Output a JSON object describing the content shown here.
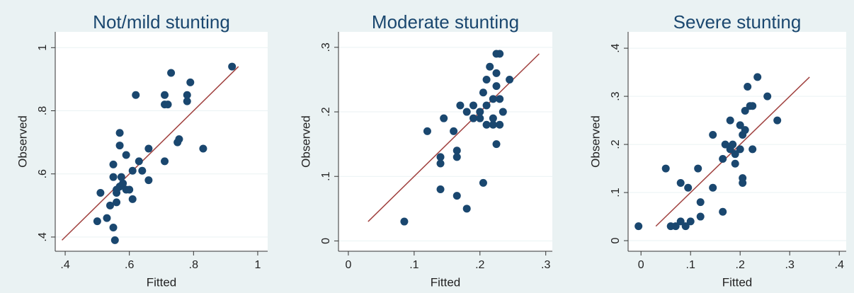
{
  "chart_data": [
    {
      "type": "scatter",
      "title": "Not/mild stunting",
      "x_label": "Fitted",
      "y_label": "Observed",
      "color": "#1a476f",
      "grid": true,
      "xlim": [
        0.369,
        1.031
      ],
      "ylim": [
        0.355,
        1.05
      ],
      "xticks": [
        {
          "value": 0.4,
          "label": ".4"
        },
        {
          "value": 0.6,
          "label": ".6"
        },
        {
          "value": 0.8,
          "label": ".8"
        },
        1
      ],
      "yticks": [
        {
          "value": 0.4,
          "label": ".4"
        },
        {
          "value": 0.6,
          "label": ".6"
        },
        {
          "value": 0.8,
          "label": ".8"
        },
        1
      ],
      "x": [
        0.5,
        0.51,
        0.53,
        0.54,
        0.55,
        0.555,
        0.55,
        0.55,
        0.56,
        0.56,
        0.56,
        0.57,
        0.57,
        0.57,
        0.575,
        0.58,
        0.59,
        0.59,
        0.6,
        0.61,
        0.61,
        0.62,
        0.63,
        0.64,
        0.66,
        0.66,
        0.71,
        0.71,
        0.71,
        0.72,
        0.73,
        0.75,
        0.755,
        0.78,
        0.78,
        0.79,
        0.83,
        0.92
      ],
      "y": [
        0.45,
        0.54,
        0.46,
        0.5,
        0.43,
        0.39,
        0.59,
        0.63,
        0.51,
        0.54,
        0.55,
        0.56,
        0.69,
        0.73,
        0.59,
        0.57,
        0.66,
        0.55,
        0.55,
        0.52,
        0.61,
        0.85,
        0.64,
        0.61,
        0.68,
        0.58,
        0.85,
        0.82,
        0.64,
        0.82,
        0.92,
        0.7,
        0.71,
        0.83,
        0.85,
        0.89,
        0.68,
        0.94
      ],
      "fit_line": {
        "color": "#a0403e",
        "x": [
          0.39,
          0.94
        ],
        "y": [
          0.39,
          0.94
        ]
      }
    },
    {
      "type": "scatter",
      "title": "Moderate stunting",
      "x_label": "Fitted",
      "y_label": "Observed",
      "color": "#1a476f",
      "grid": true,
      "xlim": [
        -0.015,
        0.31
      ],
      "ylim": [
        -0.016,
        0.324
      ],
      "xticks": [
        0,
        {
          "value": 0.1,
          "label": ".1"
        },
        {
          "value": 0.2,
          "label": ".2"
        },
        {
          "value": 0.3,
          "label": ".3"
        }
      ],
      "yticks": [
        0,
        {
          "value": 0.1,
          "label": ".1"
        },
        {
          "value": 0.2,
          "label": ".2"
        },
        {
          "value": 0.3,
          "label": ".3"
        }
      ],
      "x": [
        0.085,
        0.12,
        0.14,
        0.14,
        0.14,
        0.145,
        0.16,
        0.165,
        0.165,
        0.165,
        0.17,
        0.18,
        0.18,
        0.19,
        0.19,
        0.2,
        0.2,
        0.205,
        0.205,
        0.21,
        0.21,
        0.21,
        0.215,
        0.22,
        0.22,
        0.22,
        0.225,
        0.225,
        0.225,
        0.225,
        0.23,
        0.23,
        0.23,
        0.235,
        0.245
      ],
      "y": [
        0.03,
        0.17,
        0.13,
        0.12,
        0.08,
        0.19,
        0.17,
        0.13,
        0.14,
        0.07,
        0.21,
        0.05,
        0.2,
        0.21,
        0.19,
        0.19,
        0.2,
        0.09,
        0.23,
        0.25,
        0.21,
        0.18,
        0.27,
        0.22,
        0.19,
        0.18,
        0.15,
        0.24,
        0.26,
        0.29,
        0.29,
        0.18,
        0.22,
        0.2,
        0.25
      ],
      "fit_line": {
        "color": "#a0403e",
        "x": [
          0.03,
          0.29
        ],
        "y": [
          0.03,
          0.29
        ]
      }
    },
    {
      "type": "scatter",
      "title": "Severe stunting",
      "x_label": "Fitted",
      "y_label": "Observed",
      "color": "#1a476f",
      "grid": true,
      "xlim": [
        -0.026,
        0.414
      ],
      "ylim": [
        -0.022,
        0.434
      ],
      "xticks": [
        0,
        {
          "value": 0.1,
          "label": ".1"
        },
        {
          "value": 0.2,
          "label": ".2"
        },
        {
          "value": 0.3,
          "label": ".3"
        },
        {
          "value": 0.4,
          "label": ".4"
        }
      ],
      "yticks": [
        0,
        {
          "value": 0.1,
          "label": ".1"
        },
        {
          "value": 0.2,
          "label": ".2"
        },
        {
          "value": 0.3,
          "label": ".3"
        },
        {
          "value": 0.4,
          "label": ".4"
        }
      ],
      "x": [
        -0.005,
        0.05,
        0.06,
        0.07,
        0.08,
        0.08,
        0.09,
        0.095,
        0.1,
        0.115,
        0.12,
        0.12,
        0.145,
        0.145,
        0.165,
        0.165,
        0.17,
        0.18,
        0.18,
        0.185,
        0.19,
        0.19,
        0.2,
        0.2,
        0.205,
        0.205,
        0.205,
        0.21,
        0.21,
        0.215,
        0.22,
        0.225,
        0.225,
        0.235,
        0.255,
        0.275
      ],
      "y": [
        0.03,
        0.15,
        0.03,
        0.03,
        0.12,
        0.04,
        0.03,
        0.11,
        0.04,
        0.15,
        0.08,
        0.05,
        0.11,
        0.22,
        0.17,
        0.06,
        0.2,
        0.25,
        0.19,
        0.2,
        0.16,
        0.18,
        0.19,
        0.24,
        0.12,
        0.13,
        0.22,
        0.27,
        0.23,
        0.32,
        0.28,
        0.19,
        0.28,
        0.34,
        0.3,
        0.25
      ],
      "fit_line": {
        "color": "#a0403e",
        "x": [
          0.03,
          0.34
        ],
        "y": [
          0.03,
          0.34
        ]
      }
    }
  ]
}
